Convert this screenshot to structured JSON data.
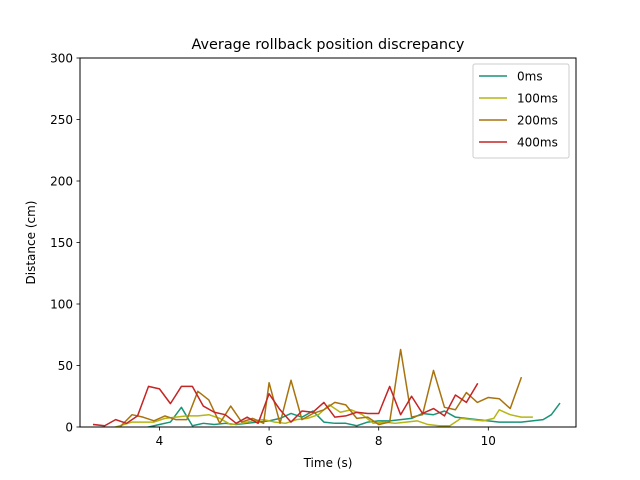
{
  "chart_data": {
    "type": "line",
    "title": "Average rollback position discrepancy",
    "xlabel": "Time (s)",
    "ylabel": "Distance (cm)",
    "xlim": [
      2.55,
      11.6
    ],
    "ylim": [
      0,
      300
    ],
    "xticks": [
      4,
      6,
      8,
      10
    ],
    "yticks": [
      0,
      50,
      100,
      150,
      200,
      250,
      300
    ],
    "grid": false,
    "legend_position": "top-right",
    "series": [
      {
        "name": "0ms",
        "color": "#1a9477",
        "points": [
          [
            3.8,
            0
          ],
          [
            4.0,
            2
          ],
          [
            4.2,
            4
          ],
          [
            4.4,
            16
          ],
          [
            4.6,
            1
          ],
          [
            4.8,
            3
          ],
          [
            5.0,
            2
          ],
          [
            5.2,
            3
          ],
          [
            5.4,
            2
          ],
          [
            5.6,
            3
          ],
          [
            5.8,
            4
          ],
          [
            6.0,
            5
          ],
          [
            6.2,
            7
          ],
          [
            6.4,
            11
          ],
          [
            6.6,
            8
          ],
          [
            6.8,
            13
          ],
          [
            7.0,
            4
          ],
          [
            7.2,
            3
          ],
          [
            7.4,
            3
          ],
          [
            7.6,
            1
          ],
          [
            7.8,
            4
          ],
          [
            8.0,
            5
          ],
          [
            8.2,
            5
          ],
          [
            8.4,
            6
          ],
          [
            8.6,
            7
          ],
          [
            8.8,
            11
          ],
          [
            9.0,
            10
          ],
          [
            9.2,
            13
          ],
          [
            9.4,
            8
          ],
          [
            9.6,
            7
          ],
          [
            9.8,
            6
          ],
          [
            10.0,
            5
          ],
          [
            10.2,
            4
          ],
          [
            10.4,
            4
          ],
          [
            10.6,
            4
          ],
          [
            10.8,
            5
          ],
          [
            11.0,
            6
          ],
          [
            11.15,
            10
          ],
          [
            11.3,
            19
          ]
        ]
      },
      {
        "name": "100ms",
        "color": "#b5b514",
        "points": [
          [
            3.2,
            0
          ],
          [
            3.5,
            4
          ],
          [
            3.7,
            4
          ],
          [
            3.9,
            4
          ],
          [
            4.1,
            7
          ],
          [
            4.3,
            8
          ],
          [
            4.5,
            9
          ],
          [
            4.7,
            9
          ],
          [
            4.9,
            10
          ],
          [
            5.1,
            7
          ],
          [
            5.3,
            2
          ],
          [
            5.5,
            3
          ],
          [
            5.7,
            5
          ],
          [
            5.9,
            6
          ],
          [
            6.1,
            4
          ],
          [
            6.3,
            3
          ],
          [
            6.5,
            6
          ],
          [
            6.7,
            7
          ],
          [
            6.9,
            10
          ],
          [
            7.1,
            18
          ],
          [
            7.3,
            12
          ],
          [
            7.5,
            14
          ],
          [
            7.7,
            10
          ],
          [
            7.9,
            3
          ],
          [
            8.1,
            4
          ],
          [
            8.3,
            3
          ],
          [
            8.5,
            4
          ],
          [
            8.7,
            5
          ],
          [
            8.9,
            2
          ],
          [
            9.1,
            1
          ],
          [
            9.3,
            1
          ],
          [
            9.5,
            7
          ],
          [
            9.7,
            6
          ],
          [
            9.9,
            5
          ],
          [
            10.1,
            7
          ],
          [
            10.2,
            14
          ],
          [
            10.4,
            10
          ],
          [
            10.6,
            8
          ],
          [
            10.8,
            8
          ]
        ]
      },
      {
        "name": "200ms",
        "color": "#a8730e",
        "points": [
          [
            3.3,
            1
          ],
          [
            3.5,
            10
          ],
          [
            3.7,
            8
          ],
          [
            3.9,
            5
          ],
          [
            4.1,
            9
          ],
          [
            4.3,
            6
          ],
          [
            4.5,
            6
          ],
          [
            4.7,
            29
          ],
          [
            4.9,
            22
          ],
          [
            5.1,
            3
          ],
          [
            5.3,
            17
          ],
          [
            5.5,
            4
          ],
          [
            5.7,
            7
          ],
          [
            5.9,
            3
          ],
          [
            6.0,
            36
          ],
          [
            6.2,
            3
          ],
          [
            6.4,
            38
          ],
          [
            6.6,
            6
          ],
          [
            6.8,
            11
          ],
          [
            7.0,
            14
          ],
          [
            7.2,
            20
          ],
          [
            7.4,
            18
          ],
          [
            7.6,
            7
          ],
          [
            7.8,
            8
          ],
          [
            8.0,
            2
          ],
          [
            8.2,
            4
          ],
          [
            8.4,
            63
          ],
          [
            8.6,
            8
          ],
          [
            8.8,
            10
          ],
          [
            9.0,
            46
          ],
          [
            9.2,
            16
          ],
          [
            9.4,
            14
          ],
          [
            9.6,
            28
          ],
          [
            9.8,
            20
          ],
          [
            10.0,
            24
          ],
          [
            10.2,
            23
          ],
          [
            10.4,
            15
          ],
          [
            10.6,
            40
          ]
        ]
      },
      {
        "name": "400ms",
        "color": "#c42525",
        "points": [
          [
            2.8,
            2
          ],
          [
            3.0,
            1
          ],
          [
            3.2,
            6
          ],
          [
            3.4,
            3
          ],
          [
            3.6,
            9
          ],
          [
            3.8,
            33
          ],
          [
            4.0,
            31
          ],
          [
            4.2,
            19
          ],
          [
            4.4,
            33
          ],
          [
            4.6,
            33
          ],
          [
            4.8,
            17
          ],
          [
            5.0,
            12
          ],
          [
            5.2,
            10
          ],
          [
            5.4,
            3
          ],
          [
            5.6,
            8
          ],
          [
            5.8,
            3
          ],
          [
            6.0,
            27
          ],
          [
            6.2,
            14
          ],
          [
            6.4,
            4
          ],
          [
            6.6,
            13
          ],
          [
            6.8,
            12
          ],
          [
            7.0,
            20
          ],
          [
            7.2,
            8
          ],
          [
            7.4,
            9
          ],
          [
            7.6,
            12
          ],
          [
            7.8,
            11
          ],
          [
            8.0,
            11
          ],
          [
            8.2,
            33
          ],
          [
            8.4,
            10
          ],
          [
            8.6,
            25
          ],
          [
            8.8,
            11
          ],
          [
            9.0,
            15
          ],
          [
            9.2,
            9
          ],
          [
            9.4,
            26
          ],
          [
            9.6,
            20
          ],
          [
            9.8,
            35
          ]
        ]
      }
    ]
  }
}
